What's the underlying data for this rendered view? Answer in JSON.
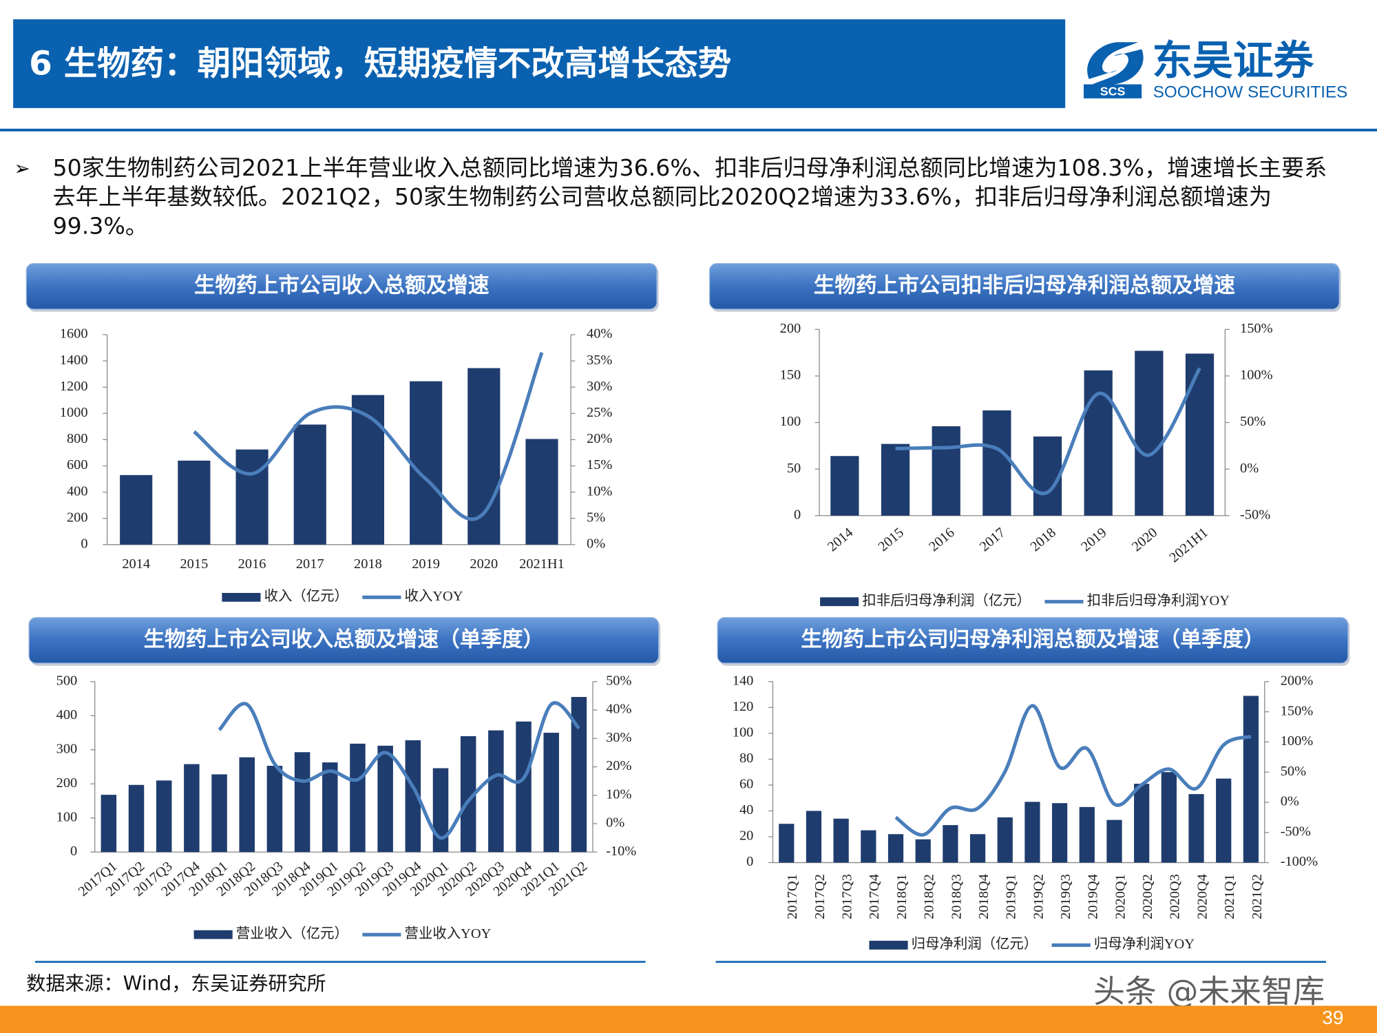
{
  "header": {
    "title": "6 生物药：朝阳领域，短期疫情不改高增长态势",
    "logo_cn": "东吴证券",
    "logo_en": "SOOCHOW SECURITIES",
    "logo_mark": "SCS"
  },
  "bullet": "50家生物制药公司2021上半年营业收入总额同比增速为36.6%、扣非后归母净利润总额同比增速为108.3%，增速增长主要系去年上半年基数较低。2021Q2，50家生物制药公司营收总额同比2020Q2增速为33.6%，扣非后归母净利润总额增速为99.3%。",
  "chart_data": [
    {
      "type": "combo",
      "title": "生物药上市公司收入总额及增速",
      "categories": [
        "2014",
        "2015",
        "2016",
        "2017",
        "2018",
        "2019",
        "2020",
        "2021H1"
      ],
      "series": [
        {
          "name": "收入（亿元）",
          "type": "bar",
          "color": "#1f3c6e",
          "values": [
            530,
            640,
            725,
            915,
            1140,
            1245,
            1345,
            805
          ]
        },
        {
          "name": "收入YOY",
          "type": "line",
          "axis": "y2",
          "color": "#4a7ebb",
          "values": [
            null,
            21.5,
            13.5,
            25,
            24.5,
            12.5,
            6,
            36.6
          ]
        }
      ],
      "ylim": [
        0,
        1600
      ],
      "yticks": [
        0,
        200,
        400,
        600,
        800,
        1000,
        1200,
        1400,
        1600
      ],
      "y2lim": [
        0,
        40
      ],
      "y2ticks": [
        {
          "value": 0,
          "label": "0%"
        },
        {
          "value": 5,
          "label": "5%"
        },
        {
          "value": 10,
          "label": "10%"
        },
        {
          "value": 15,
          "label": "15%"
        },
        {
          "value": 20,
          "label": "20%"
        },
        {
          "value": 25,
          "label": "25%"
        },
        {
          "value": 30,
          "label": "30%"
        },
        {
          "value": 35,
          "label": "35%"
        },
        {
          "value": 40,
          "label": "40%"
        }
      ]
    },
    {
      "type": "combo",
      "title": "生物药上市公司扣非后归母净利润总额及增速",
      "categories": [
        "2014",
        "2015",
        "2016",
        "2017",
        "2018",
        "2019",
        "2020",
        "2021H1"
      ],
      "series": [
        {
          "name": "扣非后归母净利润（亿元）",
          "type": "bar",
          "color": "#1f3c6e",
          "values": [
            64,
            77,
            96,
            113,
            85,
            156,
            177,
            174
          ]
        },
        {
          "name": "扣非后归母净利润YOY",
          "type": "line",
          "axis": "y2",
          "color": "#4a7ebb",
          "values": [
            null,
            22,
            23,
            22,
            -25,
            81,
            15,
            108.3
          ]
        }
      ],
      "ylim": [
        0,
        200
      ],
      "yticks": [
        0,
        50,
        100,
        150,
        200
      ],
      "y2lim": [
        -50,
        150
      ],
      "y2ticks": [
        {
          "value": -50,
          "label": "-50%"
        },
        {
          "value": 0,
          "label": "0%"
        },
        {
          "value": 50,
          "label": "50%"
        },
        {
          "value": 100,
          "label": "100%"
        },
        {
          "value": 150,
          "label": "150%"
        }
      ]
    },
    {
      "type": "combo",
      "title": "生物药上市公司收入总额及增速（单季度）",
      "categories": [
        "2017Q1",
        "2017Q2",
        "2017Q3",
        "2017Q4",
        "2018Q1",
        "2018Q2",
        "2018Q3",
        "2018Q4",
        "2019Q1",
        "2019Q2",
        "2019Q3",
        "2019Q4",
        "2020Q1",
        "2020Q2",
        "2020Q3",
        "2020Q4",
        "2021Q1",
        "2021Q2"
      ],
      "series": [
        {
          "name": "营业收入（亿元）",
          "type": "bar",
          "color": "#1f3c6e",
          "values": [
            168,
            197,
            210,
            258,
            228,
            278,
            253,
            293,
            263,
            318,
            312,
            328,
            246,
            340,
            357,
            383,
            350,
            455
          ]
        },
        {
          "name": "营业收入YOY",
          "type": "line",
          "axis": "y2",
          "color": "#4a7ebb",
          "values": [
            null,
            null,
            null,
            null,
            33,
            42,
            21,
            15,
            18.5,
            15.5,
            25,
            13,
            -5,
            8,
            17,
            16,
            42,
            33.6
          ]
        }
      ],
      "ylim": [
        0,
        500
      ],
      "yticks": [
        0,
        100,
        200,
        300,
        400,
        500
      ],
      "y2lim": [
        -10,
        50
      ],
      "y2ticks": [
        {
          "value": -10,
          "label": "-10%"
        },
        {
          "value": 0,
          "label": "0%"
        },
        {
          "value": 10,
          "label": "10%"
        },
        {
          "value": 20,
          "label": "20%"
        },
        {
          "value": 30,
          "label": "30%"
        },
        {
          "value": 40,
          "label": "40%"
        },
        {
          "value": 50,
          "label": "50%"
        }
      ]
    },
    {
      "type": "combo",
      "title": "生物药上市公司归母净利润总额及增速（单季度）",
      "categories": [
        "2017Q1",
        "2017Q2",
        "2017Q3",
        "2017Q4",
        "2018Q1",
        "2018Q2",
        "2018Q3",
        "2018Q4",
        "2019Q1",
        "2019Q2",
        "2019Q3",
        "2019Q4",
        "2020Q1",
        "2020Q2",
        "2020Q3",
        "2020Q4",
        "2021Q1",
        "2021Q2"
      ],
      "series": [
        {
          "name": "归母净利润（亿元）",
          "type": "bar",
          "color": "#1f3c6e",
          "values": [
            30,
            40,
            34,
            25,
            22,
            18,
            29,
            22,
            35,
            47,
            46,
            43,
            33,
            61,
            70,
            53,
            65,
            129
          ]
        },
        {
          "name": "归母净利润YOY",
          "type": "line",
          "axis": "y2",
          "color": "#4a7ebb",
          "values": [
            null,
            null,
            null,
            null,
            -25,
            -54,
            -10,
            -10,
            51,
            160,
            58,
            89,
            -3,
            29,
            55,
            23,
            95,
            109
          ]
        }
      ],
      "ylim": [
        0,
        140
      ],
      "yticks": [
        0,
        20,
        40,
        60,
        80,
        100,
        120,
        140
      ],
      "y2lim": [
        -100,
        200
      ],
      "y2ticks": [
        {
          "value": -100,
          "label": "-100%"
        },
        {
          "value": -50,
          "label": "-50%"
        },
        {
          "value": 0,
          "label": "0%"
        },
        {
          "value": 50,
          "label": "50%"
        },
        {
          "value": 100,
          "label": "100%"
        },
        {
          "value": 150,
          "label": "150%"
        },
        {
          "value": 200,
          "label": "200%"
        }
      ]
    }
  ],
  "source": "数据来源：Wind，东吴证券研究所",
  "watermark": "头条 @未来智库",
  "page_number": 39
}
